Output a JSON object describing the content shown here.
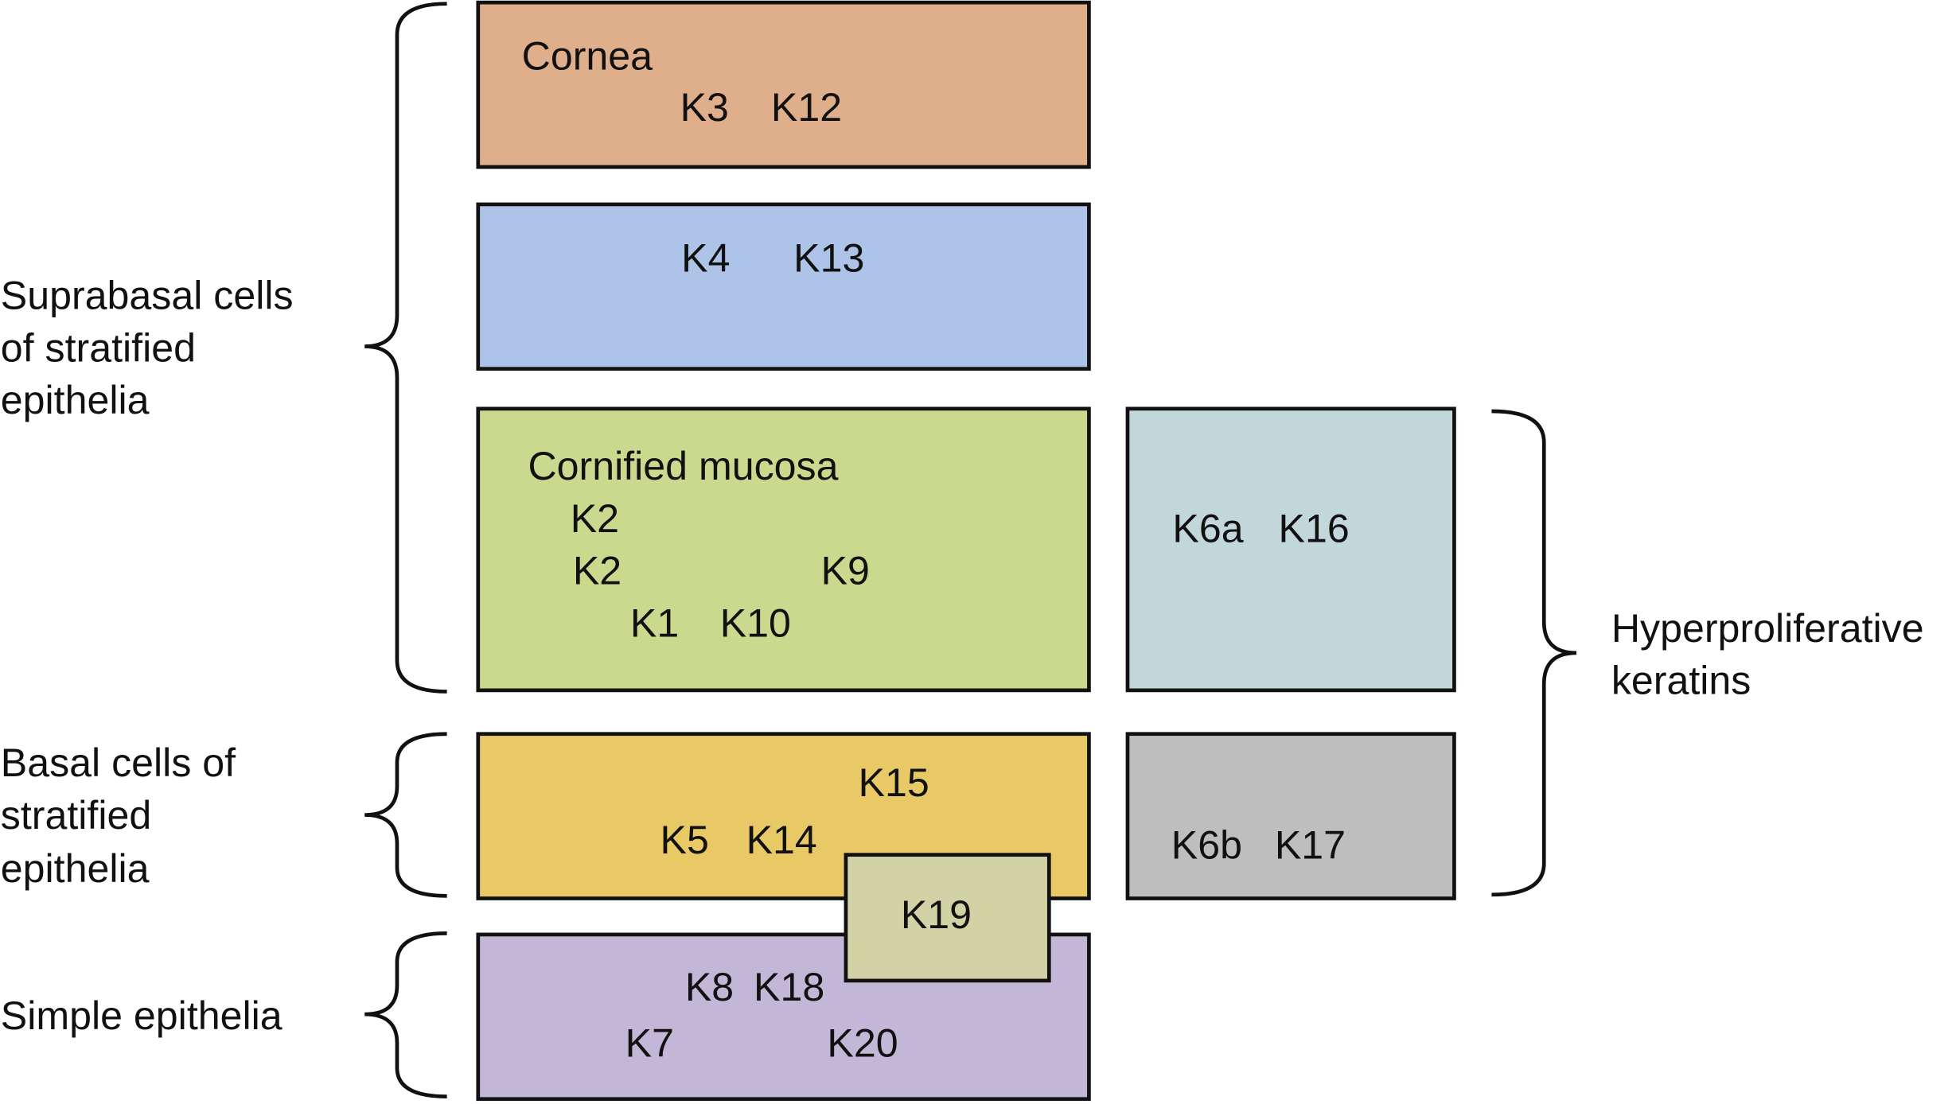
{
  "boxes": {
    "cornea": {
      "title": "Cornea",
      "keratins": [
        "K3",
        "K12"
      ],
      "color": "#DFAE8A"
    },
    "mucosa": {
      "keratins": [
        "K4",
        "K13"
      ],
      "color": "#AEC3E8"
    },
    "cornified": {
      "title": "Cornified mucosa",
      "keratins": [
        "K2",
        "K2",
        "K9",
        "K1",
        "K10"
      ],
      "color": "#CAD98D"
    },
    "hyper_a": {
      "keratins": [
        "K6a",
        "K16"
      ],
      "color": "#C2D7DA"
    },
    "basal": {
      "keratins": [
        "K15",
        "K5",
        "K14"
      ],
      "color": "#E9C965"
    },
    "hyper_b": {
      "keratins": [
        "K6b",
        "K17"
      ],
      "color": "#BEBEBE"
    },
    "simple": {
      "keratins": [
        "K8",
        "K18",
        "K7",
        "K20"
      ],
      "color": "#C3B7D8"
    },
    "k19": {
      "keratins": [
        "K19"
      ],
      "color": "#D1D2A5"
    }
  },
  "groups": {
    "suprabasal": [
      "Suprabasal cells",
      "of stratified",
      "epithelia"
    ],
    "basal": [
      "Basal cells of",
      "stratified",
      "epithelia"
    ],
    "simple": [
      "Simple epithelia"
    ],
    "hyperproliferative": [
      "Hyperproliferative",
      "keratins"
    ]
  }
}
